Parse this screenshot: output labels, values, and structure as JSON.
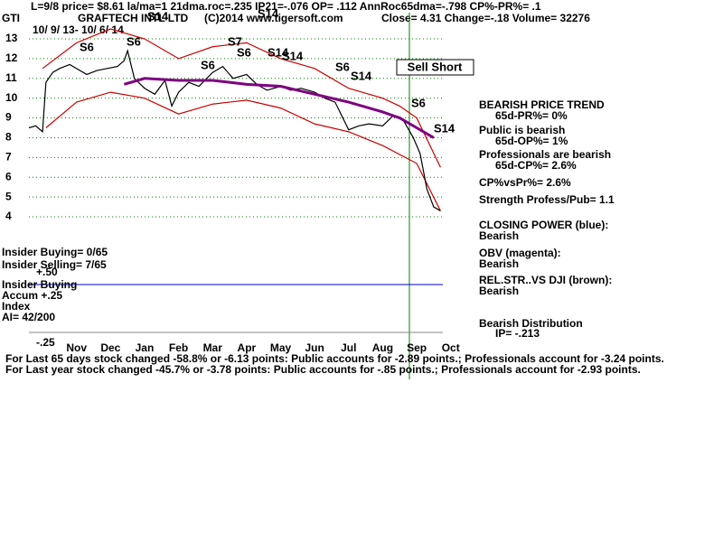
{
  "header": {
    "line1": "L=9/8  price= $8.61  la/ma=1 21dma.roc=.235 IP21=-.076 OP= .112 AnnRoc65dma=-.798 CP%-PR%=  .1",
    "site": "(C)2014 www.tigersoft.com",
    "quote": "Close=  4.31  Change=-.18 Volume= 32276",
    "range": "10/ 9/ 13-  10/ 6/ 14"
  },
  "chart_data": {
    "type": "line",
    "ticker": "GTI",
    "title": "GRAFTECH INTL LTD",
    "xlim": [
      -0.4,
      12.3
    ],
    "xticks": [
      {
        "value": 1,
        "label": "Nov"
      },
      {
        "value": 2,
        "label": "Dec"
      },
      {
        "value": 3,
        "label": "Jan"
      },
      {
        "value": 4,
        "label": "Feb"
      },
      {
        "value": 5,
        "label": "Mar"
      },
      {
        "value": 6,
        "label": "Apr"
      },
      {
        "value": 7,
        "label": "May"
      },
      {
        "value": 8,
        "label": "Jun"
      },
      {
        "value": 9,
        "label": "Jul"
      },
      {
        "value": 10,
        "label": "Aug"
      },
      {
        "value": 11,
        "label": "Sep"
      },
      {
        "value": 12,
        "label": "Oct"
      }
    ],
    "ylim": [
      4,
      13
    ],
    "yticks": [
      4,
      5,
      6,
      7,
      8,
      9,
      10,
      11,
      12,
      13
    ],
    "grid": true,
    "series": [
      {
        "color": "#cc0000",
        "x": [
          0,
          1,
          2,
          3,
          4,
          5,
          6,
          7,
          8,
          9,
          10,
          10.5,
          11,
          11.7
        ],
        "values": [
          11.5,
          12.8,
          13.5,
          13.0,
          12.0,
          12.6,
          12.8,
          12.0,
          11.5,
          10.5,
          10.0,
          9.6,
          9.0,
          6.5
        ]
      },
      {
        "color": "#cc0000",
        "x": [
          0.1,
          1,
          2,
          3,
          4,
          5,
          6,
          7,
          8,
          9,
          10,
          11,
          11.7
        ],
        "values": [
          8.5,
          9.8,
          10.3,
          10.0,
          9.2,
          9.7,
          9.9,
          9.5,
          8.7,
          8.3,
          7.6,
          6.7,
          4.3
        ]
      },
      {
        "color": "#000000",
        "x": [
          -0.4,
          -0.2,
          0,
          0.1,
          0.3,
          0.5,
          0.8,
          1.0,
          1.3,
          1.6,
          1.9,
          2.2,
          2.4,
          2.5,
          2.7,
          3.0,
          3.3,
          3.6,
          3.8,
          4.0,
          4.3,
          4.6,
          5.0,
          5.3,
          5.6,
          6.0,
          6.3,
          6.6,
          7.0,
          7.3,
          7.6,
          8.0,
          8.3,
          8.6,
          9.0,
          9.3,
          9.6,
          10.0,
          10.3,
          10.6,
          10.9,
          11.1,
          11.3,
          11.5,
          11.7
        ],
        "values": [
          8.5,
          8.6,
          8.3,
          10.8,
          11.3,
          11.5,
          11.7,
          11.5,
          11.2,
          11.4,
          11.5,
          11.6,
          11.9,
          12.4,
          11.0,
          10.5,
          10.2,
          10.9,
          9.6,
          10.3,
          10.8,
          10.6,
          11.3,
          11.6,
          11.0,
          11.2,
          10.7,
          10.4,
          10.6,
          10.4,
          10.5,
          10.3,
          10.0,
          9.8,
          8.4,
          8.6,
          8.7,
          8.6,
          9.1,
          8.9,
          8.0,
          7.2,
          5.4,
          4.5,
          4.3
        ]
      },
      {
        "color": "#800080",
        "x": [
          2.4,
          3,
          4,
          5,
          6,
          7,
          8,
          9,
          10,
          10.5,
          11,
          11.5
        ],
        "values": [
          10.7,
          11.0,
          10.9,
          10.9,
          10.7,
          10.6,
          10.2,
          9.8,
          9.3,
          9.0,
          8.5,
          8.0
        ]
      }
    ],
    "signals": [
      "S6",
      "S6",
      "S14",
      "S6",
      "S6",
      "S7",
      "S14",
      "S14",
      "S14",
      "S6",
      "S14",
      "S6",
      "S14"
    ],
    "annotation": "Sell Short",
    "left_notes": [
      "Insider Buying= 0/65",
      "Insider Selling= 7/65",
      "+.50",
      "Insider Buying",
      "Accum +.25",
      "Index",
      "AI= 42/200",
      "-.25"
    ],
    "right_notes": [
      "BEARISH PRICE TREND",
      "65d-PR%= 0%",
      "Public is bearish",
      "65d-OP%= 1%",
      "Professionals are bearish",
      "65d-CP%= 2.6%",
      "CP%vsPr%=  2.6%",
      "Strength Profess/Pub= 1.1",
      "CLOSING POWER (blue):",
      "Bearish",
      "OBV (magenta):",
      "Bearish",
      "REL.STR..VS DJI (brown):",
      "Bearish",
      "Bearish Distribution",
      "IP= -.213"
    ]
  },
  "footer": [
    "For Last 65 days stock changed -58.8% or -6.13 points:  Public accounts for -2.89 points.;  Professionals account for -3.24 points.",
    "For Last year stock changed -45.7% or -3.78 points:  Public accounts for -.85 points.;  Professionals account for -2.93 points."
  ]
}
